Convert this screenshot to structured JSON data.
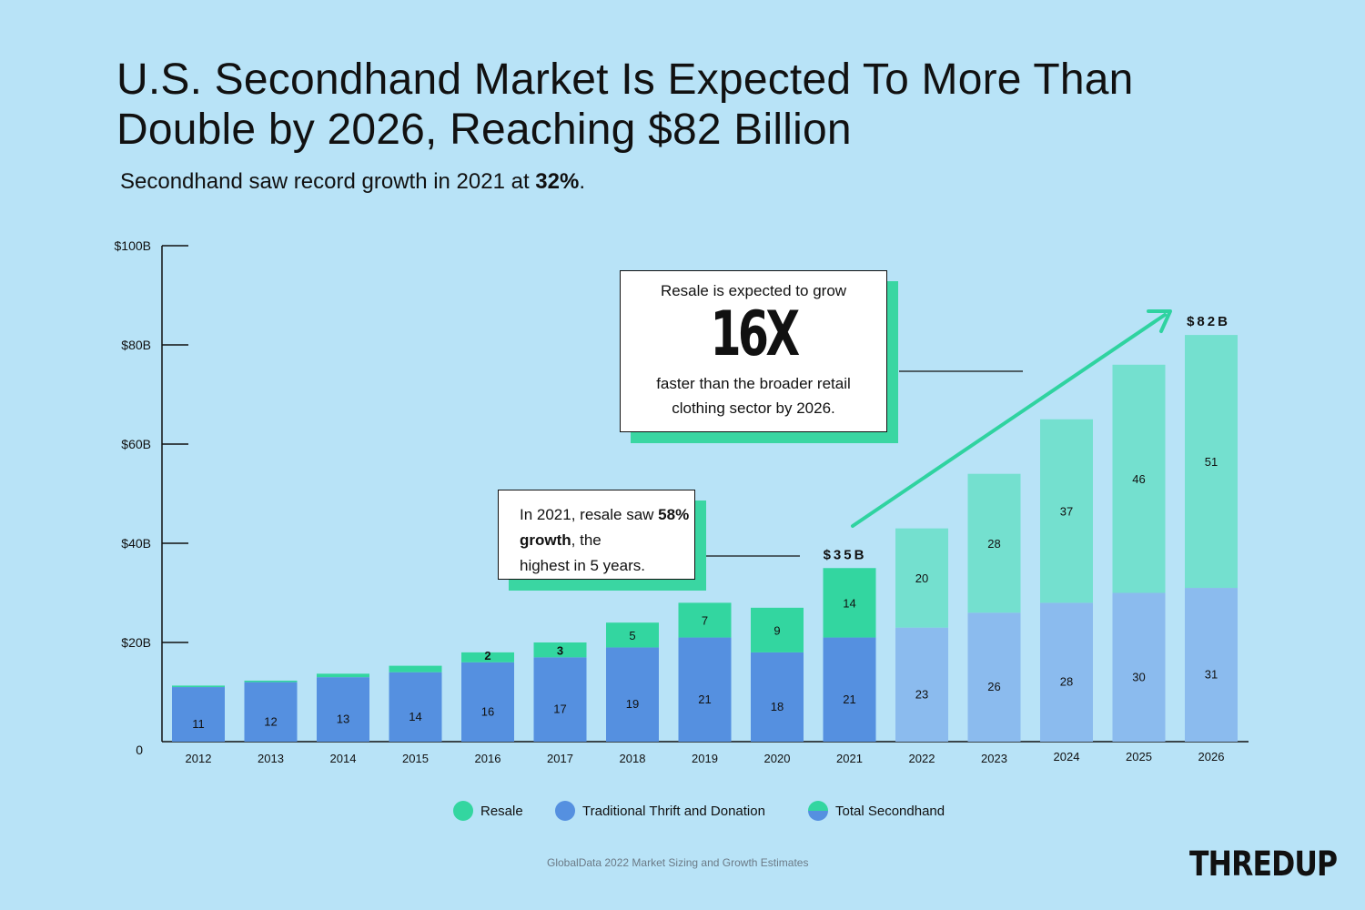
{
  "title": "U.S. Secondhand Market Is Expected To More Than Double by 2026, Reaching $82 Billion",
  "subtitle": {
    "before": "Secondhand saw record growth in 2021 at ",
    "bold": "32%",
    "after": "."
  },
  "callout1": {
    "top": "Resale is expected to grow",
    "big": "16X",
    "bottom": "faster than the broader retail clothing sector by 2026."
  },
  "callout2": {
    "before": "In 2021, resale saw ",
    "bold": "58% growth",
    "mid": ", the",
    "after": "highest in 5 years."
  },
  "legend": {
    "resale": "Resale",
    "thrift": "Traditional Thrift and Donation",
    "total": "Total Secondhand"
  },
  "source": "GlobalData 2022 Market Sizing and Growth Estimates",
  "logo": "THREDUP",
  "colors": {
    "background": "#b8e3f7",
    "resale": "#33d6a0",
    "thrift": "#5590e0",
    "resale_projected": "#74e0cf",
    "thrift_projected": "#8bbbee",
    "accent": "#2fd3a0"
  },
  "chart_data": {
    "type": "bar",
    "stacked": true,
    "categories": [
      "2012",
      "2013",
      "2014",
      "2015",
      "2016",
      "2017",
      "2018",
      "2019",
      "2020",
      "2021",
      "2022",
      "2023",
      "2024",
      "2025",
      "2026"
    ],
    "series": [
      {
        "name": "Traditional Thrift and Donation",
        "values": [
          11,
          12,
          13,
          14,
          16,
          17,
          19,
          21,
          18,
          21,
          23,
          26,
          28,
          30,
          31
        ]
      },
      {
        "name": "Resale",
        "values": [
          0.3,
          0.3,
          0.7,
          1.3,
          2,
          3,
          5,
          7,
          9,
          14,
          20,
          28,
          37,
          46,
          51
        ]
      }
    ],
    "labels": {
      "thrift": [
        "11",
        "12",
        "13",
        "14",
        "16",
        "17",
        "19",
        "21",
        "18",
        "21",
        "23",
        "26",
        "28",
        "30",
        "31"
      ],
      "resale": [
        "",
        "",
        "",
        "",
        "2",
        "3",
        "5",
        "7",
        "9",
        "14",
        "20",
        "28",
        "37",
        "46",
        "51"
      ]
    },
    "projected_from": "2022",
    "totals_shown": [
      {
        "category": "2021",
        "label": "$35B"
      },
      {
        "category": "2026",
        "label": "$82B"
      }
    ],
    "yticks": [
      {
        "value": 0,
        "label": "0"
      },
      {
        "value": 20,
        "label": "$20B"
      },
      {
        "value": 40,
        "label": "$40B"
      },
      {
        "value": 60,
        "label": "$60B"
      },
      {
        "value": 80,
        "label": "$80B"
      },
      {
        "value": 100,
        "label": "$100B"
      }
    ],
    "ylim": [
      0,
      100
    ],
    "legend_position": "bottom"
  }
}
